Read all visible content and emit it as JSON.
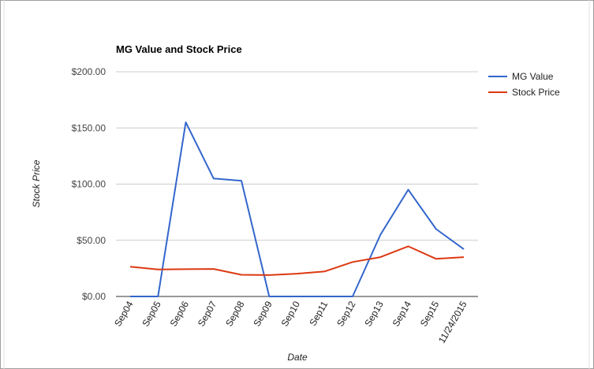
{
  "chart_data": {
    "type": "line",
    "title": "MG Value and Stock Price",
    "xlabel": "Date",
    "ylabel": "Stock Price",
    "categories": [
      "Sep04",
      "Sep05",
      "Sep06",
      "Sep07",
      "Sep08",
      "Sep09",
      "Sep10",
      "Sep11",
      "Sep12",
      "Sep13",
      "Sep14",
      "Sep15",
      "11/24/2015"
    ],
    "ylim": [
      0,
      200
    ],
    "yticks": [
      {
        "value": 0,
        "label": "$0.00"
      },
      {
        "value": 50,
        "label": "$50.00"
      },
      {
        "value": 100,
        "label": "$100.00"
      },
      {
        "value": 150,
        "label": "$150.00"
      },
      {
        "value": 200,
        "label": "$200.00"
      }
    ],
    "grid": true,
    "legend_position": "right",
    "series": [
      {
        "name": "MG Value",
        "color": "#3366cc",
        "values": [
          0,
          0,
          155,
          105,
          103,
          0,
          0,
          0,
          0,
          55,
          95,
          60,
          42
        ]
      },
      {
        "name": "Stock Price",
        "color": "#dc3912",
        "values": [
          26.5,
          24,
          24.3,
          24.5,
          19.3,
          19,
          20.3,
          22.3,
          30.7,
          35,
          44.6,
          33.5,
          35
        ]
      }
    ]
  }
}
